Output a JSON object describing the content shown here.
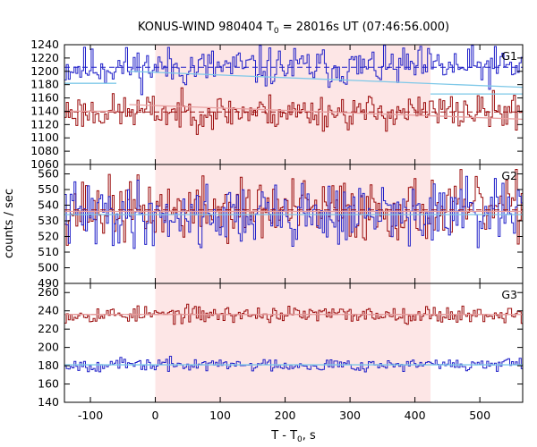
{
  "chart_data": {
    "type": "line",
    "title_prefix": "KONUS-WIND 980404 T",
    "title_sub": "0",
    "title_suffix": " = 28016s UT (07:46:56.000)",
    "xlabel_prefix": "T - T",
    "xlabel_sub": "0",
    "xlabel_suffix": ", s",
    "ylabel": "counts / sec",
    "xlim": [
      -140,
      566
    ],
    "xticks": [
      -100,
      0,
      100,
      200,
      300,
      400,
      500
    ],
    "shaded_interval": [
      0,
      424
    ],
    "colors": {
      "series_red": "#9b0c0c",
      "series_blue": "#2020c8",
      "fit_light_red": "#e8a0a0",
      "fit_light_blue": "#7ec8e8",
      "shade": "#fde6e6"
    },
    "panels": [
      {
        "label": "G1",
        "ylim": [
          1060,
          1240
        ],
        "yticks": [
          1060,
          1080,
          1100,
          1120,
          1140,
          1160,
          1180,
          1200,
          1220,
          1240
        ],
        "series": [
          {
            "color": "blue",
            "mean": 1206,
            "noise": 15,
            "seed": 11,
            "background_segments": [
              {
                "x": [
                  -140,
                  -60
                ],
                "y": 1182
              },
              {
                "x": [
                  -40,
                  566
                ],
                "y": 1200,
                "y_end": 1176
              },
              {
                "x": [
                  424,
                  566
                ],
                "y": 1166
              }
            ]
          },
          {
            "color": "red",
            "mean": 1139,
            "noise": 13,
            "seed": 23,
            "background_segments": [
              {
                "x": [
                  -140,
                  -60
                ],
                "y": 1140
              },
              {
                "x": [
                  -40,
                  566
                ],
                "y": 1150,
                "y_end": 1128
              }
            ]
          }
        ]
      },
      {
        "label": "G2",
        "ylim": [
          490,
          566
        ],
        "yticks": [
          490,
          500,
          510,
          520,
          530,
          540,
          550,
          560
        ],
        "series": [
          {
            "color": "red",
            "mean": 537,
            "noise": 10,
            "seed": 37,
            "background_segments": [
              {
                "x": [
                  -140,
                  566
                ],
                "y": 536
              }
            ]
          },
          {
            "color": "blue",
            "mean": 534,
            "noise": 10,
            "seed": 41,
            "background_segments": [
              {
                "x": [
                  -140,
                  566
                ],
                "y": 534
              }
            ]
          }
        ]
      },
      {
        "label": "G3",
        "ylim": [
          140,
          270
        ],
        "yticks": [
          140,
          160,
          180,
          200,
          220,
          240,
          260
        ],
        "series": [
          {
            "color": "red",
            "mean": 236,
            "noise": 4.5,
            "seed": 53,
            "background_segments": [
              {
                "x": [
                  -140,
                  566
                ],
                "y": 236
              }
            ]
          },
          {
            "color": "blue",
            "mean": 181,
            "noise": 3.5,
            "seed": 67,
            "background_segments": [
              {
                "x": [
                  -140,
                  566
                ],
                "y": 181
              }
            ]
          }
        ]
      }
    ]
  }
}
